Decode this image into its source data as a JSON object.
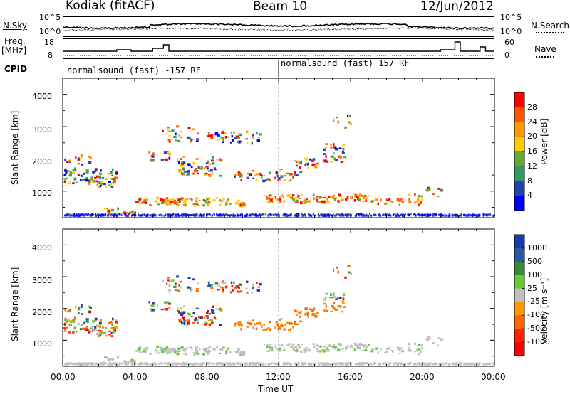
{
  "header": {
    "station": "Kodiak (fitACF)",
    "beam": "Beam 10",
    "date": "12/Jun/2012"
  },
  "noise_panel": {
    "left_label": "N.Sky",
    "right_label": "N.Search",
    "left_ticks": [
      "10^5",
      "10^0"
    ],
    "right_ticks": [
      "10^5",
      "10^0"
    ]
  },
  "freq_panel": {
    "left_label_line1": "Freq.",
    "left_label_line2": "[MHz]",
    "left_ticks": [
      "18",
      "8"
    ],
    "right_label": "Nave",
    "right_ticks": [
      "60",
      "0"
    ]
  },
  "cpid_panel": {
    "label": "CPID",
    "segments": [
      {
        "text": "normalsound (fast) -157 RF",
        "start_hour": 0
      },
      {
        "text": "normalsound (fast) 157 RF",
        "start_hour": 12
      }
    ]
  },
  "power_panel": {
    "ylabel": "Slant Range [km]",
    "yticks": [
      "4000",
      "3000",
      "2000",
      "1000"
    ],
    "colorbar_label": "Power [dB]",
    "colorbar_ticks": [
      "28",
      "24",
      "20",
      "16",
      "12",
      "8",
      "4"
    ],
    "colorbar_colors": [
      "#ff0000",
      "#ff5500",
      "#ff9900",
      "#ffcc00",
      "#66aa33",
      "#339966",
      "#2244aa",
      "#0000ff"
    ]
  },
  "velocity_panel": {
    "ylabel": "Slant Range [km]",
    "yticks": [
      "4000",
      "3000",
      "2000",
      "1000"
    ],
    "colorbar_label": "Velocity [m s⁻¹]",
    "colorbar_ticks": [
      "1000",
      "500",
      "100",
      "25",
      "-25",
      "-100",
      "-500",
      "-1000"
    ],
    "colorbar_colors": [
      "#1a3aa8",
      "#2a5aa0",
      "#3a8a3a",
      "#66cc33",
      "#c0c0c0",
      "#ff9900",
      "#ff6600",
      "#ff2200",
      "#ff0000"
    ]
  },
  "xaxis": {
    "ticks": [
      "00:00",
      "04:00",
      "08:00",
      "12:00",
      "16:00",
      "20:00",
      "00:00"
    ],
    "label": "Time UT"
  },
  "chart_data": [
    {
      "type": "heatmap",
      "title": "Power",
      "ylabel": "Slant Range [km]",
      "xlabel": "Time UT",
      "xlim_hours": [
        0,
        24
      ],
      "ylim": [
        180,
        4500
      ],
      "colorbar_range": [
        0,
        30
      ],
      "units": "dB"
    },
    {
      "type": "heatmap",
      "title": "Velocity",
      "ylabel": "Slant Range [km]",
      "xlabel": "Time UT",
      "xlim_hours": [
        0,
        24
      ],
      "ylim": [
        180,
        4500
      ],
      "colorbar_range": [
        -1000,
        1000
      ],
      "units": "m s-1"
    }
  ]
}
